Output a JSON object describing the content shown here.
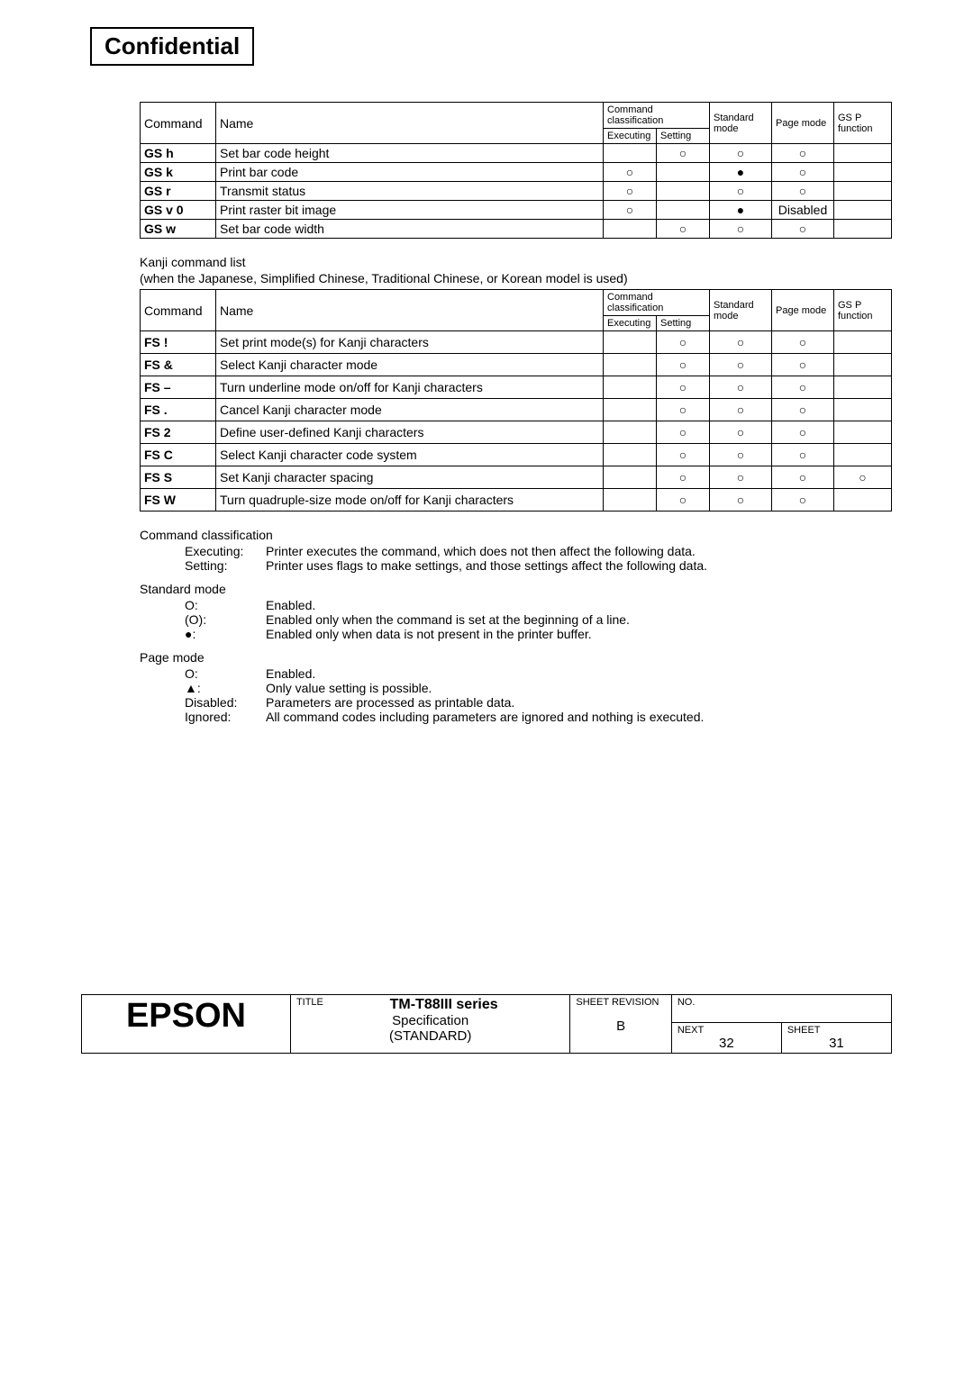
{
  "confidential": "Confidential",
  "table1": {
    "headers": {
      "command": "Command",
      "name": "Name",
      "classification": "Command classification",
      "executing": "Executing",
      "setting": "Setting",
      "standard_mode": "Standard mode",
      "page_mode": "Page mode",
      "gsp": "GS P function"
    },
    "rows": [
      {
        "cmd": "GS h",
        "name": "Set bar code height",
        "exec": "",
        "set": "○",
        "std": "○",
        "page": "○",
        "gsp": ""
      },
      {
        "cmd": "GS k",
        "name": "Print bar code",
        "exec": "○",
        "set": "",
        "std": "●",
        "page": "○",
        "gsp": ""
      },
      {
        "cmd": "GS r",
        "name": "Transmit status",
        "exec": "○",
        "set": "",
        "std": "○",
        "page": "○",
        "gsp": ""
      },
      {
        "cmd": "GS v 0",
        "name": "Print raster bit image",
        "exec": "○",
        "set": "",
        "std": "●",
        "page": "Disabled",
        "gsp": ""
      },
      {
        "cmd": "GS w",
        "name": "Set bar code width",
        "exec": "",
        "set": "○",
        "std": "○",
        "page": "○",
        "gsp": ""
      }
    ]
  },
  "kanji_title": "Kanji command list",
  "kanji_sub": "(when the Japanese, Simplified Chinese, Traditional Chinese, or Korean model is used)",
  "table2": {
    "rows": [
      {
        "cmd": "FS !",
        "name": "Set print mode(s) for Kanji characters",
        "exec": "",
        "set": "○",
        "std": "○",
        "page": "○",
        "gsp": ""
      },
      {
        "cmd": "FS &",
        "name": "Select Kanji character mode",
        "exec": "",
        "set": "○",
        "std": "○",
        "page": "○",
        "gsp": ""
      },
      {
        "cmd": "FS –",
        "name": "Turn underline mode on/off for Kanji characters",
        "exec": "",
        "set": "○",
        "std": "○",
        "page": "○",
        "gsp": ""
      },
      {
        "cmd": "FS .",
        "name": "Cancel Kanji character mode",
        "exec": "",
        "set": "○",
        "std": "○",
        "page": "○",
        "gsp": ""
      },
      {
        "cmd": "FS 2",
        "name": "Define user-defined Kanji characters",
        "exec": "",
        "set": "○",
        "std": "○",
        "page": "○",
        "gsp": ""
      },
      {
        "cmd": "FS C",
        "name": "Select Kanji character code system",
        "exec": "",
        "set": "○",
        "std": "○",
        "page": "○",
        "gsp": ""
      },
      {
        "cmd": "FS S",
        "name": "Set Kanji character spacing",
        "exec": "",
        "set": "○",
        "std": "○",
        "page": "○",
        "gsp": "○"
      },
      {
        "cmd": "FS W",
        "name": "Turn quadruple-size mode on/off for Kanji characters",
        "exec": "",
        "set": "○",
        "std": "○",
        "page": "○",
        "gsp": ""
      }
    ]
  },
  "legend": {
    "cmd_class_title": "Command classification",
    "cmd_class_rows": [
      {
        "sym": "Executing:",
        "desc": "Printer executes the command, which does not then affect the following data."
      },
      {
        "sym": "Setting:",
        "desc": "Printer uses flags to make settings, and those settings affect the following data."
      }
    ],
    "std_title": "Standard mode",
    "std_rows": [
      {
        "sym": "O:",
        "desc": "Enabled."
      },
      {
        "sym": "(O):",
        "desc": "Enabled only when the command is set at the beginning of a line."
      },
      {
        "sym": "●:",
        "desc": "Enabled only when data is not present in the printer buffer."
      }
    ],
    "page_title": "Page mode",
    "page_rows": [
      {
        "sym": "O:",
        "desc": "Enabled."
      },
      {
        "sym": "▲:",
        "desc": "Only value setting is possible."
      },
      {
        "sym": "Disabled:",
        "desc": "Parameters are processed as printable data."
      },
      {
        "sym": "Ignored:",
        "desc": "All command codes including parameters are ignored and nothing is executed."
      }
    ]
  },
  "footer": {
    "brand": "EPSON",
    "title_label": "TITLE",
    "title_line1": "TM-T88III series",
    "title_line2": "Specification",
    "title_line3": "(STANDARD)",
    "sheet_rev_label": "SHEET REVISION",
    "sheet_rev": "B",
    "no_label": "NO.",
    "next_label": "NEXT",
    "next_val": "32",
    "sheet_label": "SHEET",
    "sheet_val": "31"
  }
}
